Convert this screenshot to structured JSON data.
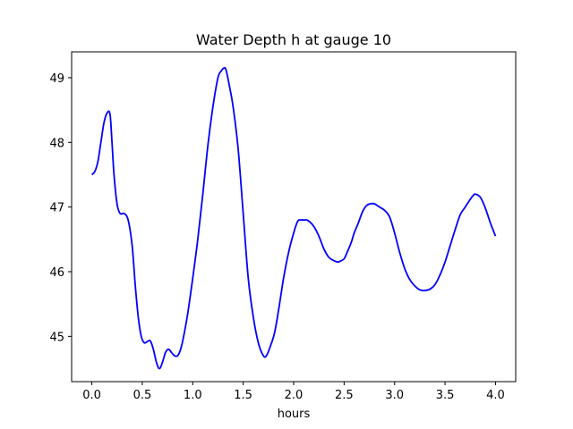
{
  "chart_data": {
    "type": "line",
    "title": "Water Depth h at gauge 10",
    "xlabel": "hours",
    "ylabel": "",
    "xlim": [
      -0.2,
      4.2
    ],
    "ylim": [
      44.3,
      49.4
    ],
    "xticks": [
      0.0,
      0.5,
      1.0,
      1.5,
      2.0,
      2.5,
      3.0,
      3.5,
      4.0
    ],
    "xtick_labels": [
      "0.0",
      "0.5",
      "1.0",
      "1.5",
      "2.0",
      "2.5",
      "3.0",
      "3.5",
      "4.0"
    ],
    "yticks": [
      45,
      46,
      47,
      48,
      49
    ],
    "ytick_labels": [
      "45",
      "46",
      "47",
      "48",
      "49"
    ],
    "grid": false,
    "series": [
      {
        "color": "#0000ff",
        "x": [
          0.0,
          0.03,
          0.06,
          0.09,
          0.12,
          0.15,
          0.18,
          0.2,
          0.22,
          0.25,
          0.28,
          0.32,
          0.36,
          0.4,
          0.43,
          0.46,
          0.49,
          0.52,
          0.55,
          0.58,
          0.61,
          0.64,
          0.67,
          0.7,
          0.73,
          0.76,
          0.79,
          0.82,
          0.85,
          0.88,
          0.91,
          0.95,
          1.0,
          1.05,
          1.1,
          1.15,
          1.2,
          1.25,
          1.28,
          1.31,
          1.33,
          1.36,
          1.4,
          1.45,
          1.5,
          1.55,
          1.6,
          1.65,
          1.7,
          1.73,
          1.77,
          1.81,
          1.85,
          1.9,
          1.95,
          2.0,
          2.04,
          2.07,
          2.1,
          2.13,
          2.16,
          2.2,
          2.25,
          2.3,
          2.35,
          2.4,
          2.44,
          2.47,
          2.5,
          2.53,
          2.57,
          2.6,
          2.64,
          2.68,
          2.72,
          2.76,
          2.8,
          2.85,
          2.9,
          2.95,
          3.0,
          3.05,
          3.1,
          3.15,
          3.2,
          3.25,
          3.3,
          3.35,
          3.4,
          3.45,
          3.5,
          3.55,
          3.6,
          3.65,
          3.7,
          3.75,
          3.78,
          3.8,
          3.85,
          3.9,
          3.95,
          4.0
        ],
        "y": [
          47.5,
          47.55,
          47.7,
          48.0,
          48.3,
          48.45,
          48.44,
          48.0,
          47.5,
          47.05,
          46.9,
          46.9,
          46.8,
          46.4,
          45.8,
          45.3,
          45.0,
          44.9,
          44.92,
          44.93,
          44.8,
          44.6,
          44.5,
          44.6,
          44.75,
          44.8,
          44.75,
          44.7,
          44.7,
          44.8,
          45.0,
          45.35,
          45.9,
          46.5,
          47.2,
          47.95,
          48.55,
          49.0,
          49.1,
          49.15,
          49.12,
          48.9,
          48.55,
          47.9,
          46.9,
          45.9,
          45.3,
          44.9,
          44.7,
          44.7,
          44.85,
          45.05,
          45.4,
          45.9,
          46.3,
          46.6,
          46.78,
          46.8,
          46.8,
          46.8,
          46.77,
          46.7,
          46.55,
          46.35,
          46.22,
          46.17,
          46.15,
          46.17,
          46.2,
          46.3,
          46.45,
          46.6,
          46.75,
          46.92,
          47.02,
          47.05,
          47.05,
          47.0,
          46.95,
          46.85,
          46.6,
          46.3,
          46.05,
          45.88,
          45.78,
          45.72,
          45.71,
          45.73,
          45.8,
          45.95,
          46.15,
          46.4,
          46.65,
          46.88,
          47.0,
          47.12,
          47.18,
          47.2,
          47.15,
          46.98,
          46.75,
          46.55
        ]
      }
    ]
  }
}
